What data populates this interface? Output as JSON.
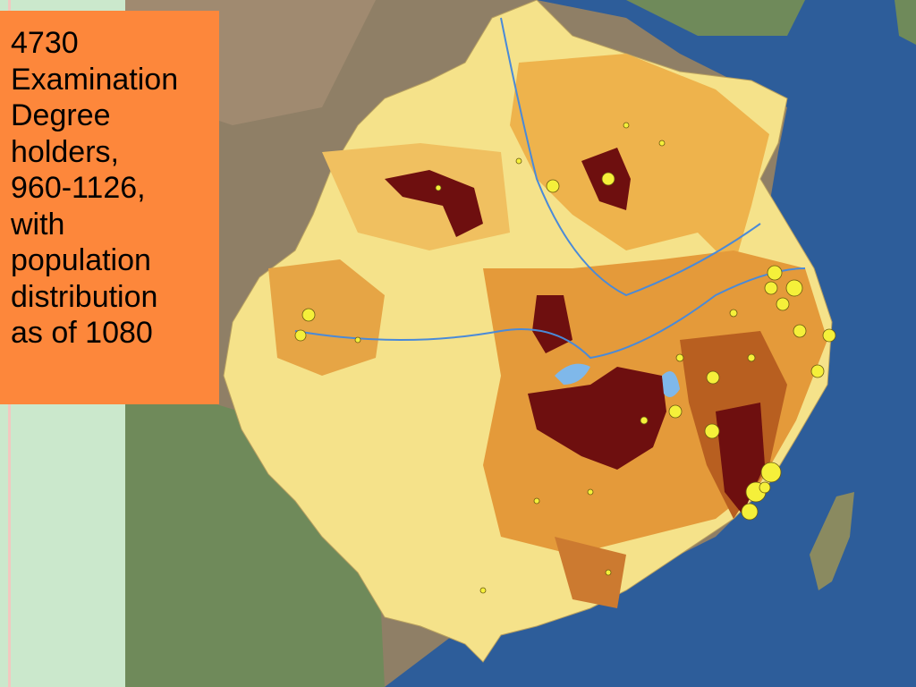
{
  "caption": {
    "lines": [
      "4730",
      "Examination",
      "Degree",
      "holders,",
      "960-1126,",
      "with",
      "population",
      "distribution",
      "as of 1080"
    ]
  }
}
